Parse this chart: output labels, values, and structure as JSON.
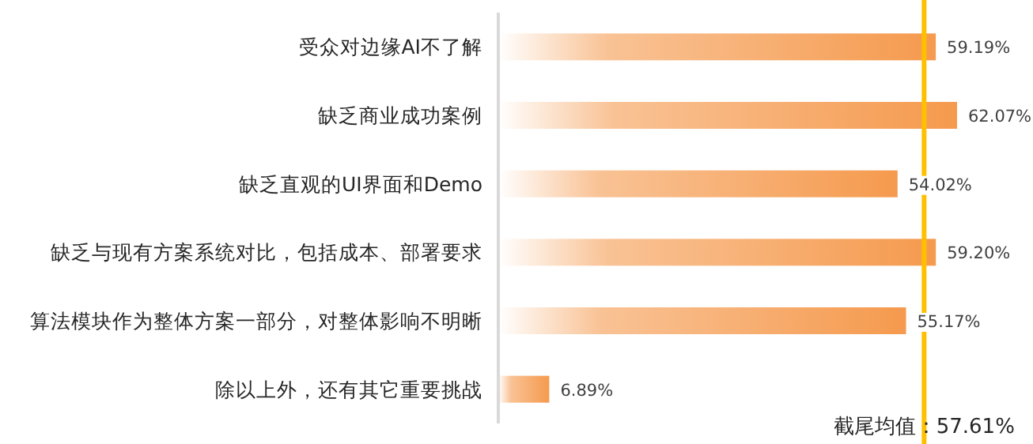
{
  "chart_data": {
    "type": "bar",
    "orientation": "horizontal",
    "relative": false,
    "categories": [
      "受众对边缘AI不了解",
      "缺乏商业成功案例",
      "缺乏直观的UI界面和Demo",
      "缺乏与现有方案系统对比，包括成本、部署要求",
      "算法模块作为整体方案一部分，对整体影响不明晰",
      "除以上外，还有其它重要挑战"
    ],
    "values": [
      59.19,
      62.07,
      54.02,
      59.2,
      55.17,
      6.89
    ],
    "value_labels": [
      "59.19%",
      "62.07%",
      "54.02%",
      "59.20%",
      "55.17%",
      "6.89%"
    ],
    "color": "#f59a4e",
    "ref_lines": [
      {
        "axis": "x",
        "value": 57.61,
        "label": "截尾均值：57.61%",
        "color": "#ffc000"
      }
    ]
  }
}
